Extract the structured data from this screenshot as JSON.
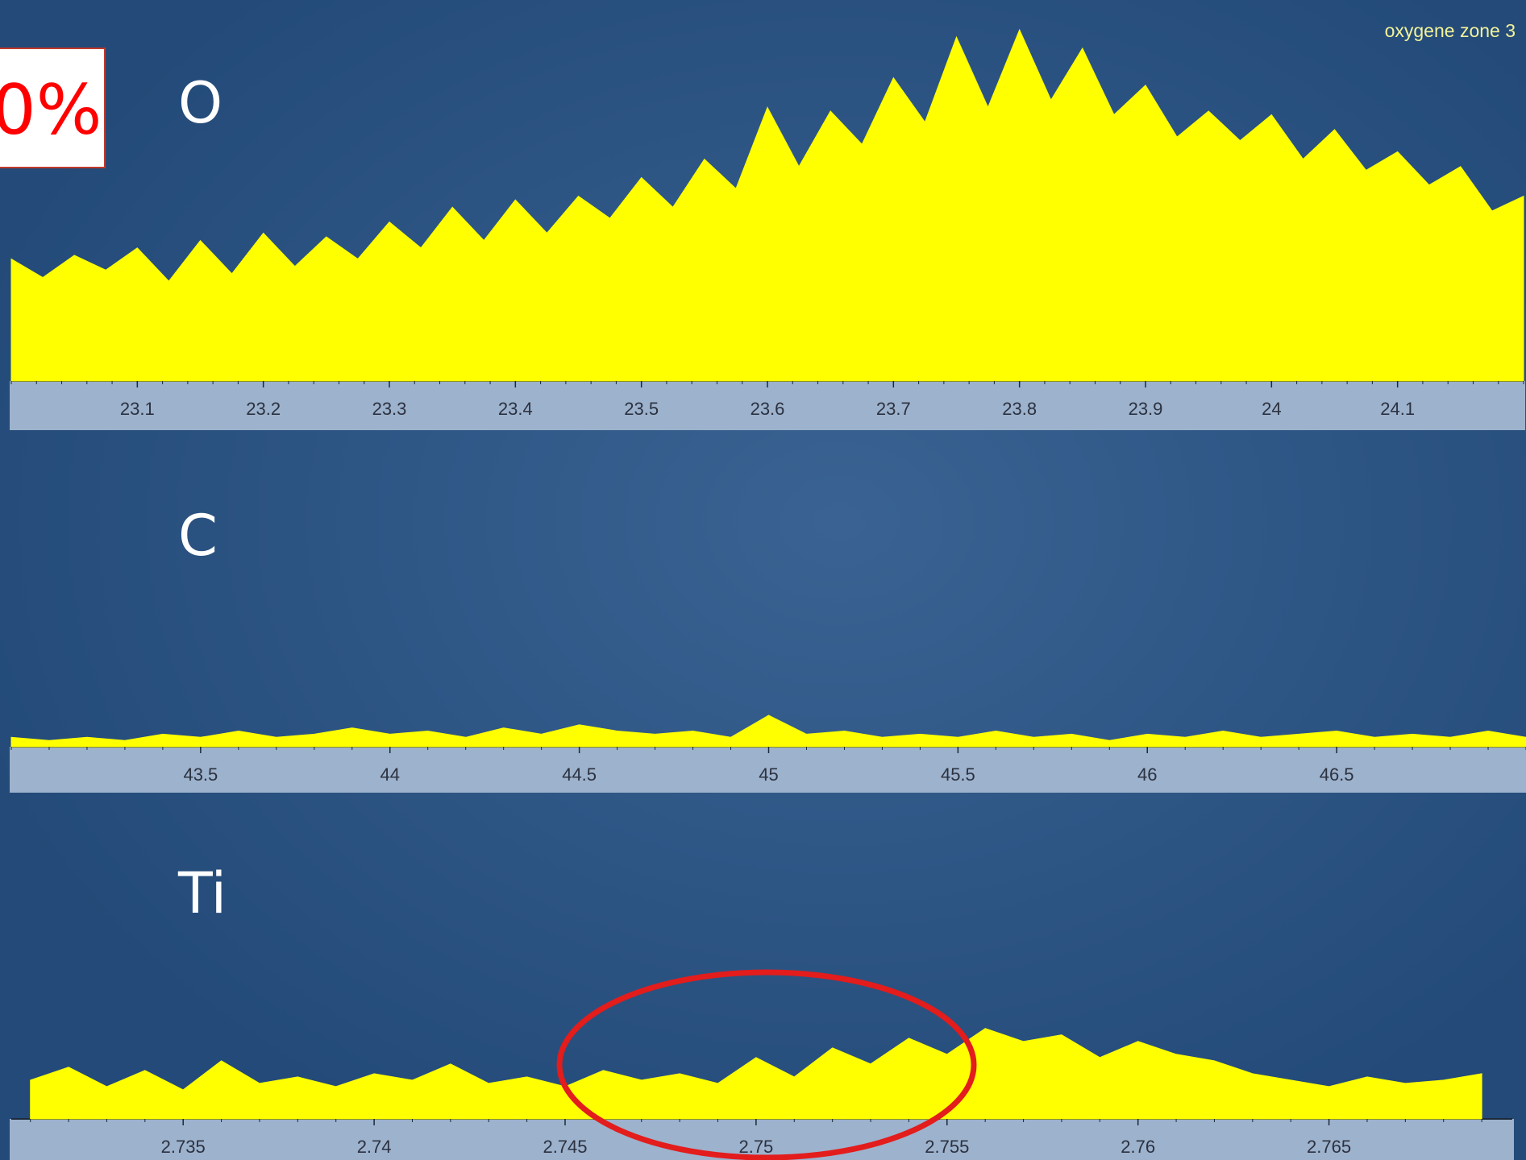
{
  "overlay_label": "0%",
  "chart_data": [
    {
      "type": "area",
      "title": "oxygene zone 3",
      "annotation": "O",
      "color": "#ffff00",
      "x": [
        23.0,
        23.025,
        23.05,
        23.075,
        23.1,
        23.125,
        23.15,
        23.175,
        23.2,
        23.225,
        23.25,
        23.275,
        23.3,
        23.325,
        23.35,
        23.375,
        23.4,
        23.425,
        23.45,
        23.475,
        23.5,
        23.525,
        23.55,
        23.575,
        23.6,
        23.625,
        23.65,
        23.675,
        23.7,
        23.725,
        23.75,
        23.775,
        23.8,
        23.825,
        23.85,
        23.875,
        23.9,
        23.925,
        23.95,
        23.975,
        24.0,
        24.025,
        24.05,
        24.075,
        24.1,
        24.125,
        24.15,
        24.175,
        24.2
      ],
      "values": [
        33,
        28,
        34,
        30,
        36,
        27,
        38,
        29,
        40,
        31,
        39,
        33,
        43,
        36,
        47,
        38,
        49,
        40,
        50,
        44,
        55,
        47,
        60,
        52,
        74,
        58,
        73,
        64,
        82,
        70,
        93,
        74,
        95,
        76,
        90,
        72,
        80,
        66,
        73,
        65,
        72,
        60,
        68,
        57,
        62,
        53,
        58,
        46,
        50
      ],
      "xlim": [
        23.0,
        24.2
      ],
      "ylim": [
        0,
        100
      ],
      "xticks": [
        23.1,
        23.2,
        23.3,
        23.4,
        23.5,
        23.6,
        23.7,
        23.8,
        23.9,
        24,
        24.1
      ]
    },
    {
      "type": "area",
      "annotation": "C",
      "color": "#ffff00",
      "x": [
        43.0,
        43.1,
        43.2,
        43.3,
        43.4,
        43.5,
        43.6,
        43.7,
        43.8,
        43.9,
        44.0,
        44.1,
        44.2,
        44.3,
        44.4,
        44.5,
        44.6,
        44.7,
        44.8,
        44.9,
        45.0,
        45.1,
        45.2,
        45.3,
        45.4,
        45.5,
        45.6,
        45.7,
        45.8,
        45.9,
        46.0,
        46.1,
        46.2,
        46.3,
        46.4,
        46.5,
        46.6,
        46.7,
        46.8,
        46.9,
        47.0
      ],
      "values": [
        3,
        2,
        3,
        2,
        4,
        3,
        5,
        3,
        4,
        6,
        4,
        5,
        3,
        6,
        4,
        7,
        5,
        4,
        5,
        3,
        10,
        4,
        5,
        3,
        4,
        3,
        5,
        3,
        4,
        2,
        4,
        3,
        5,
        3,
        4,
        5,
        3,
        4,
        3,
        5,
        3
      ],
      "xlim": [
        43.0,
        47.0
      ],
      "ylim": [
        0,
        100
      ],
      "xticks": [
        43.5,
        44,
        44.5,
        45,
        45.5,
        46,
        46.5
      ]
    },
    {
      "type": "area",
      "annotation": "Ti",
      "color": "#ffff00",
      "x": [
        2.731,
        2.732,
        2.733,
        2.734,
        2.735,
        2.736,
        2.737,
        2.738,
        2.739,
        2.74,
        2.741,
        2.742,
        2.743,
        2.744,
        2.745,
        2.746,
        2.747,
        2.748,
        2.749,
        2.75,
        2.751,
        2.752,
        2.753,
        2.754,
        2.755,
        2.756,
        2.757,
        2.758,
        2.759,
        2.76,
        2.761,
        2.762,
        2.763,
        2.764,
        2.765,
        2.766,
        2.767,
        2.768,
        2.769
      ],
      "values": [
        12,
        16,
        10,
        15,
        9,
        18,
        11,
        13,
        10,
        14,
        12,
        17,
        11,
        13,
        10,
        15,
        12,
        14,
        11,
        19,
        13,
        22,
        17,
        25,
        20,
        28,
        24,
        26,
        19,
        24,
        20,
        18,
        14,
        12,
        10,
        13,
        11,
        12,
        14
      ],
      "xlim": [
        2.7305,
        2.7698
      ],
      "ylim": [
        0,
        100
      ],
      "xticks": [
        2.735,
        2.74,
        2.745,
        2.75,
        2.755,
        2.76,
        2.765
      ]
    }
  ]
}
